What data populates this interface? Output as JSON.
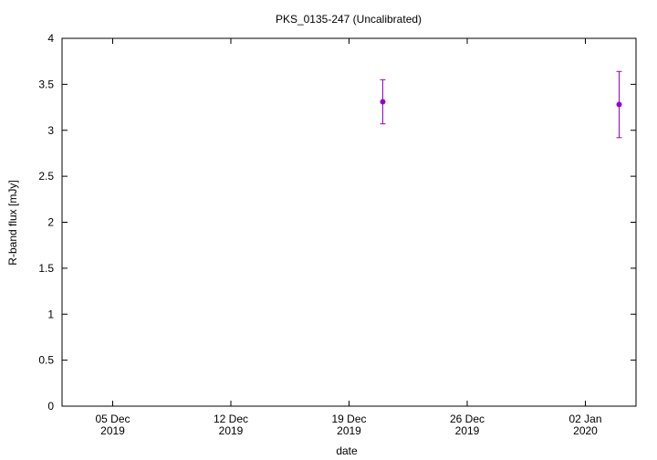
{
  "chart_data": {
    "type": "scatter",
    "title": "PKS_0135-247 (Uncalibrated)",
    "x_label": "date",
    "y_label": "R-band flux [mJy]",
    "x": [
      "2019-12-21",
      "2020-01-04"
    ],
    "series": [
      {
        "color": "#9400d3",
        "values": [
          3.31,
          3.28
        ],
        "errors": [
          0.24,
          0.36
        ]
      }
    ],
    "xlim": [
      "2019-12-02",
      "2020-01-05"
    ],
    "xticks": [
      {
        "value": "2019-12-05",
        "label": "05 Dec\n2019"
      },
      {
        "value": "2019-12-12",
        "label": "12 Dec\n2019"
      },
      {
        "value": "2019-12-19",
        "label": "19 Dec\n2019"
      },
      {
        "value": "2019-12-26",
        "label": "26 Dec\n2019"
      },
      {
        "value": "2020-01-02",
        "label": "02 Jan\n2020"
      }
    ],
    "ylim": [
      0,
      4
    ],
    "yticks": [
      0,
      0.5,
      1,
      1.5,
      2,
      2.5,
      3,
      3.5,
      4
    ],
    "grid": false
  }
}
